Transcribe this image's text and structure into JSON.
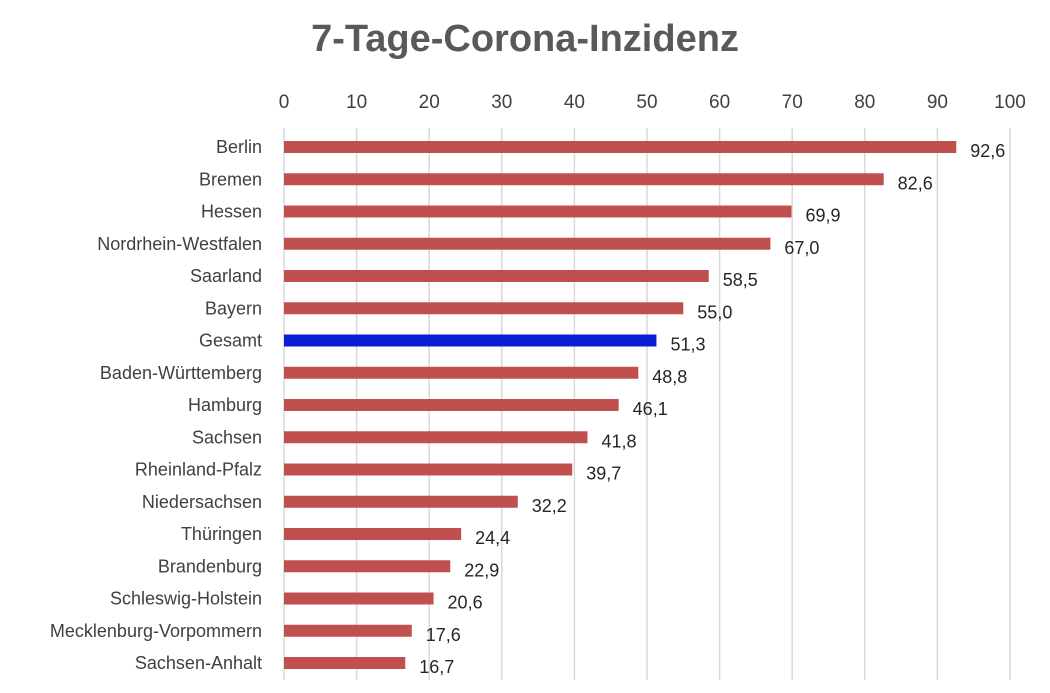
{
  "chart_data": {
    "type": "bar",
    "orientation": "horizontal",
    "title": "7-Tage-Corona-Inzidenz",
    "xlim": [
      0,
      100
    ],
    "xticks": [
      0,
      10,
      20,
      30,
      40,
      50,
      60,
      70,
      80,
      90,
      100
    ],
    "axis_position": "top",
    "grid": true,
    "categories": [
      "Berlin",
      "Bremen",
      "Hessen",
      "Nordrhein-Westfalen",
      "Saarland",
      "Bayern",
      "Gesamt",
      "Baden-Württemberg",
      "Hamburg",
      "Sachsen",
      "Rheinland-Pfalz",
      "Niedersachsen",
      "Thüringen",
      "Brandenburg",
      "Schleswig-Holstein",
      "Mecklenburg-Vorpommern",
      "Sachsen-Anhalt"
    ],
    "values": [
      92.6,
      82.6,
      69.9,
      67.0,
      58.5,
      55.0,
      51.3,
      48.8,
      46.1,
      41.8,
      39.7,
      32.2,
      24.4,
      22.9,
      20.6,
      17.6,
      16.7
    ],
    "value_labels": [
      "92,6",
      "82,6",
      "69,9",
      "67,0",
      "58,5",
      "55,0",
      "51,3",
      "48,8",
      "46,1",
      "41,8",
      "39,7",
      "32,2",
      "24,4",
      "22,9",
      "20,6",
      "17,6",
      "16,7"
    ],
    "colors": {
      "default": "#c0504d",
      "highlight": "#0b1fd6",
      "highlight_category": "Gesamt",
      "grid": "#d9d9d9"
    }
  }
}
